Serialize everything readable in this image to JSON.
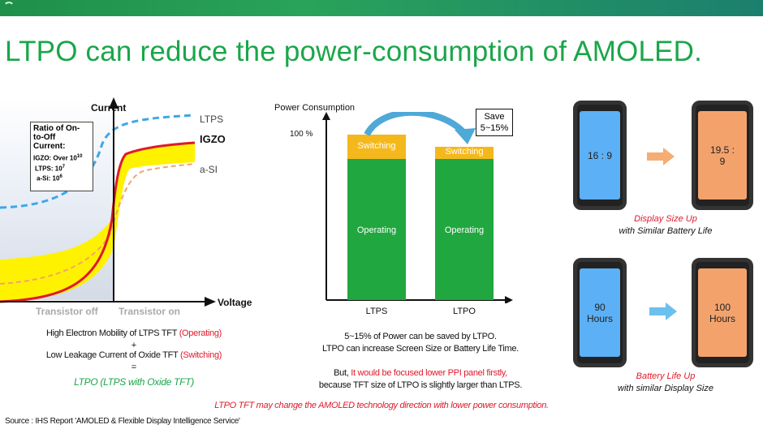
{
  "slide": {
    "title": "LTPO can reduce the power-consumption of AMOLED.",
    "footer_note": "LTPO TFT may change the AMOLED technology direction with lower power consumption.",
    "source": "Source : IHS Report 'AMOLED & Flexible Display Intelligence Service'"
  },
  "left_chart": {
    "y_axis_label": "Current",
    "x_axis_label": "Voltage",
    "curve_labels": [
      "LTPS",
      "IGZO",
      "a-SI"
    ],
    "ratio_box": {
      "heading": "Ratio of On-to-Off Current:",
      "lines": [
        "IGZO: Over 10",
        "LTPS: 10",
        "a-Si: 10"
      ]
    },
    "region_off": "Transistor off",
    "region_on": "Transistor on",
    "caption_line1_prefix": "High Electron Mobility of LTPS TFT ",
    "caption_line1_highlight": "(Operating)",
    "plus": "+",
    "caption_line2_prefix": "Low  Leakage Current of Oxide TFT ",
    "caption_line2_highlight": "(Switching)",
    "equals": "=",
    "conclusion": "LTPO (LTPS with Oxide TFT)"
  },
  "bar_chart": {
    "y_axis_label": "Power Consumption",
    "y_tick": "100 %",
    "save_box": [
      "Save",
      "5~15%"
    ],
    "bars": [
      {
        "name": "LTPS",
        "switching_label": "Switching",
        "operating_label": "Operating"
      },
      {
        "name": "LTPO",
        "switching_label": "Switching",
        "operating_label": "Operating"
      }
    ],
    "note1": "5~15% of Power can be saved by LTPO.",
    "note2": "LTPO can increase Screen Size or Battery Life Time.",
    "note3_prefix": "But, ",
    "note3_highlight": "It would be focused lower PPI panel firstly,",
    "note4": "because TFT size of LTPO is slightly larger than LTPS."
  },
  "phones": {
    "top": {
      "left_label": "16 : 9",
      "right_label_1": "19.5 :",
      "right_label_2": "9",
      "caption_red": "Display Size Up",
      "caption_black": "with Similar Battery Life"
    },
    "bottom": {
      "left_label_1": "90",
      "left_label_2": "Hours",
      "right_label_1": "100",
      "right_label_2": "Hours",
      "caption_red": "Battery Life Up",
      "caption_black": "with similar Display Size"
    }
  },
  "colors": {
    "title_green": "#1aa64a",
    "red": "#e0192b",
    "green_text": "#1aa64a",
    "bar_green": "#21a73f",
    "bar_yellow": "#f5b81c",
    "phone_blue": "#5cb0f5",
    "phone_orange": "#f4a26c",
    "arrow_orange": "#f6ad73",
    "arrow_blue": "#6cc0ee"
  }
}
